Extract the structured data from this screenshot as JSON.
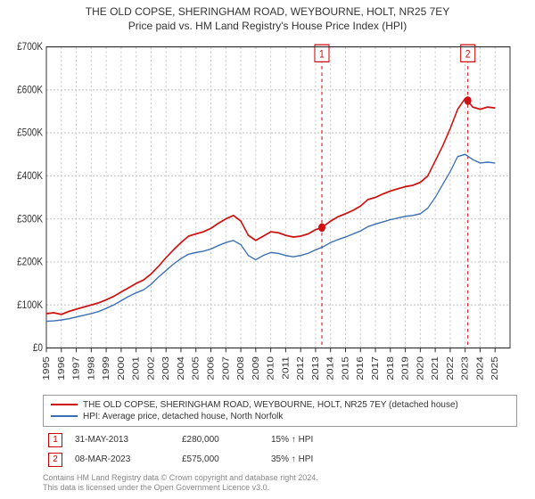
{
  "title": {
    "line1": "THE OLD COPSE, SHERINGHAM ROAD, WEYBOURNE, HOLT, NR25 7EY",
    "line2": "Price paid vs. HM Land Registry's House Price Index (HPI)"
  },
  "chart": {
    "type": "line",
    "background_color": "#ffffff",
    "grid_color": "#cccccc",
    "grid_dash": "2,2",
    "axis_color": "#333333",
    "tick_fontsize": 10,
    "title_fontsize": 12,
    "x": {
      "min": 1995,
      "max": 2026,
      "ticks": [
        1995,
        1996,
        1997,
        1998,
        1999,
        2000,
        2001,
        2002,
        2003,
        2004,
        2005,
        2006,
        2007,
        2008,
        2009,
        2010,
        2011,
        2012,
        2013,
        2014,
        2015,
        2016,
        2017,
        2018,
        2019,
        2020,
        2021,
        2022,
        2023,
        2024,
        2025
      ]
    },
    "y": {
      "min": 0,
      "max": 700,
      "ticks": [
        0,
        100,
        200,
        300,
        400,
        500,
        600,
        700
      ],
      "tick_labels": [
        "£0",
        "£100K",
        "£200K",
        "£300K",
        "£400K",
        "£500K",
        "£600K",
        "£700K"
      ]
    },
    "series": [
      {
        "name": "THE OLD COPSE, SHERINGHAM ROAD, WEYBOURNE, HOLT, NR25 7EY (detached house)",
        "color": "#d01010",
        "width": 1.5,
        "data": [
          [
            1995.0,
            80
          ],
          [
            1995.5,
            82
          ],
          [
            1996.0,
            78
          ],
          [
            1996.5,
            85
          ],
          [
            1997.0,
            90
          ],
          [
            1997.5,
            95
          ],
          [
            1998.0,
            100
          ],
          [
            1998.5,
            105
          ],
          [
            1999.0,
            112
          ],
          [
            1999.5,
            120
          ],
          [
            2000.0,
            130
          ],
          [
            2000.5,
            140
          ],
          [
            2001.0,
            150
          ],
          [
            2001.5,
            158
          ],
          [
            2002.0,
            172
          ],
          [
            2002.5,
            190
          ],
          [
            2003.0,
            210
          ],
          [
            2003.5,
            228
          ],
          [
            2004.0,
            245
          ],
          [
            2004.5,
            260
          ],
          [
            2005.0,
            265
          ],
          [
            2005.5,
            270
          ],
          [
            2006.0,
            278
          ],
          [
            2006.5,
            290
          ],
          [
            2007.0,
            300
          ],
          [
            2007.5,
            308
          ],
          [
            2008.0,
            295
          ],
          [
            2008.5,
            262
          ],
          [
            2009.0,
            250
          ],
          [
            2009.5,
            260
          ],
          [
            2010.0,
            270
          ],
          [
            2010.5,
            268
          ],
          [
            2011.0,
            262
          ],
          [
            2011.5,
            258
          ],
          [
            2012.0,
            260
          ],
          [
            2012.5,
            265
          ],
          [
            2013.0,
            275
          ],
          [
            2013.42,
            280
          ],
          [
            2014.0,
            295
          ],
          [
            2014.5,
            305
          ],
          [
            2015.0,
            312
          ],
          [
            2015.5,
            320
          ],
          [
            2016.0,
            330
          ],
          [
            2016.5,
            345
          ],
          [
            2017.0,
            350
          ],
          [
            2017.5,
            358
          ],
          [
            2018.0,
            365
          ],
          [
            2018.5,
            370
          ],
          [
            2019.0,
            375
          ],
          [
            2019.5,
            378
          ],
          [
            2020.0,
            385
          ],
          [
            2020.5,
            400
          ],
          [
            2021.0,
            435
          ],
          [
            2021.5,
            470
          ],
          [
            2022.0,
            510
          ],
          [
            2022.5,
            555
          ],
          [
            2023.0,
            580
          ],
          [
            2023.18,
            575
          ],
          [
            2023.5,
            560
          ],
          [
            2024.0,
            555
          ],
          [
            2024.5,
            560
          ],
          [
            2025.0,
            558
          ]
        ]
      },
      {
        "name": "HPI: Average price, detached house, North Norfolk",
        "color": "#3a6fb5",
        "width": 1.2,
        "data": [
          [
            1995.0,
            62
          ],
          [
            1995.5,
            63
          ],
          [
            1996.0,
            65
          ],
          [
            1996.5,
            68
          ],
          [
            1997.0,
            72
          ],
          [
            1997.5,
            76
          ],
          [
            1998.0,
            80
          ],
          [
            1998.5,
            85
          ],
          [
            1999.0,
            92
          ],
          [
            1999.5,
            100
          ],
          [
            2000.0,
            110
          ],
          [
            2000.5,
            120
          ],
          [
            2001.0,
            128
          ],
          [
            2001.5,
            135
          ],
          [
            2002.0,
            148
          ],
          [
            2002.5,
            165
          ],
          [
            2003.0,
            180
          ],
          [
            2003.5,
            195
          ],
          [
            2004.0,
            208
          ],
          [
            2004.5,
            218
          ],
          [
            2005.0,
            222
          ],
          [
            2005.5,
            225
          ],
          [
            2006.0,
            230
          ],
          [
            2006.5,
            238
          ],
          [
            2007.0,
            245
          ],
          [
            2007.5,
            250
          ],
          [
            2008.0,
            240
          ],
          [
            2008.5,
            215
          ],
          [
            2009.0,
            205
          ],
          [
            2009.5,
            215
          ],
          [
            2010.0,
            222
          ],
          [
            2010.5,
            220
          ],
          [
            2011.0,
            215
          ],
          [
            2011.5,
            212
          ],
          [
            2012.0,
            215
          ],
          [
            2012.5,
            220
          ],
          [
            2013.0,
            228
          ],
          [
            2013.5,
            235
          ],
          [
            2014.0,
            245
          ],
          [
            2014.5,
            252
          ],
          [
            2015.0,
            258
          ],
          [
            2015.5,
            265
          ],
          [
            2016.0,
            272
          ],
          [
            2016.5,
            282
          ],
          [
            2017.0,
            288
          ],
          [
            2017.5,
            293
          ],
          [
            2018.0,
            298
          ],
          [
            2018.5,
            302
          ],
          [
            2019.0,
            306
          ],
          [
            2019.5,
            308
          ],
          [
            2020.0,
            312
          ],
          [
            2020.5,
            325
          ],
          [
            2021.0,
            350
          ],
          [
            2021.5,
            380
          ],
          [
            2022.0,
            410
          ],
          [
            2022.5,
            445
          ],
          [
            2023.0,
            450
          ],
          [
            2023.5,
            438
          ],
          [
            2024.0,
            430
          ],
          [
            2024.5,
            432
          ],
          [
            2025.0,
            430
          ]
        ]
      }
    ],
    "markers": [
      {
        "label": "1",
        "x": 2013.42,
        "y": 280,
        "color": "#d01010",
        "badge_color": "#cc0000"
      },
      {
        "label": "2",
        "x": 2023.18,
        "y": 575,
        "color": "#d01010",
        "badge_color": "#cc0000"
      }
    ]
  },
  "legend": {
    "border_color": "#999999",
    "fontsize": 10
  },
  "marker_table": {
    "cols": [
      "badge",
      "date",
      "price",
      "delta"
    ],
    "rows": [
      {
        "badge": "1",
        "badge_color": "#cc0000",
        "date": "31-MAY-2013",
        "price": "£280,000",
        "delta": "15% ↑ HPI"
      },
      {
        "badge": "2",
        "badge_color": "#cc0000",
        "date": "08-MAR-2023",
        "price": "£575,000",
        "delta": "35% ↑ HPI"
      }
    ]
  },
  "license": {
    "line1": "Contains HM Land Registry data © Crown copyright and database right 2024.",
    "line2": "This data is licensed under the Open Government Licence v3.0."
  }
}
